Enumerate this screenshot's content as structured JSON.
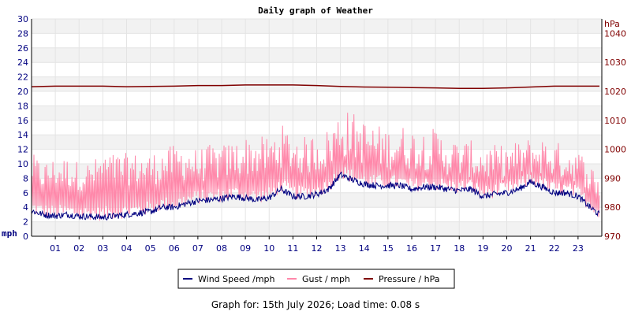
{
  "chart_data": {
    "type": "line",
    "title": "Daily graph of Weather",
    "left_axis": {
      "unit_label": "mph",
      "range": [
        0,
        30
      ],
      "ticks": [
        0,
        2,
        4,
        6,
        8,
        10,
        12,
        14,
        16,
        18,
        20,
        22,
        24,
        26,
        28,
        30
      ],
      "color": "#000080"
    },
    "right_axis": {
      "unit_label": "hPa",
      "range": [
        970,
        1045
      ],
      "ticks": [
        970,
        980,
        990,
        1000,
        1010,
        1020,
        1030,
        1040
      ],
      "color": "#800000"
    },
    "x_axis": {
      "range": [
        0,
        24
      ],
      "tick_labels": [
        "01",
        "02",
        "03",
        "04",
        "05",
        "06",
        "07",
        "08",
        "09",
        "10",
        "11",
        "12",
        "13",
        "14",
        "15",
        "16",
        "17",
        "18",
        "19",
        "20",
        "21",
        "22",
        "23"
      ]
    },
    "grid": true,
    "legend_position": "bottom-center",
    "series": [
      {
        "name": "Wind Speed /mph",
        "color": "#000080",
        "axis": "left",
        "x": [
          0,
          0.5,
          1,
          1.5,
          2,
          2.5,
          3,
          3.5,
          4,
          4.5,
          5,
          5.5,
          6,
          6.5,
          7,
          7.5,
          8,
          8.5,
          9,
          9.5,
          10,
          10.5,
          11,
          11.5,
          12,
          12.5,
          13,
          13.5,
          14,
          14.5,
          15,
          15.5,
          16,
          16.5,
          17,
          17.5,
          18,
          18.5,
          19,
          19.5,
          20,
          20.5,
          21,
          21.5,
          22,
          22.5,
          23,
          23.5,
          23.9
        ],
        "values": [
          3.5,
          3.0,
          2.8,
          3.0,
          2.8,
          2.7,
          2.6,
          2.8,
          3.0,
          3.2,
          3.4,
          4.0,
          4.0,
          4.5,
          4.9,
          5.0,
          5.2,
          5.5,
          5.3,
          5.0,
          5.3,
          6.5,
          5.5,
          5.5,
          5.8,
          6.5,
          8.5,
          7.8,
          7.2,
          7.0,
          7.0,
          7.0,
          6.5,
          6.8,
          6.8,
          6.5,
          6.3,
          6.5,
          5.5,
          5.8,
          6.0,
          6.5,
          7.5,
          6.8,
          6.0,
          6.0,
          5.5,
          4.0,
          3.0
        ]
      },
      {
        "name": "Gust / mph",
        "color": "#ff88aa",
        "axis": "left",
        "x": [
          0,
          0.5,
          1,
          1.5,
          2,
          2.5,
          3,
          3.5,
          4,
          4.5,
          5,
          5.5,
          6,
          6.5,
          7,
          7.5,
          8,
          8.5,
          9,
          9.5,
          10,
          10.5,
          11,
          11.5,
          12,
          12.5,
          13,
          13.5,
          14,
          14.5,
          15,
          15.5,
          16,
          16.5,
          17,
          17.5,
          18,
          18.5,
          19,
          19.5,
          20,
          20.5,
          21,
          21.5,
          22,
          22.5,
          23,
          23.5,
          23.9
        ],
        "values": [
          10,
          9,
          9.5,
          9.5,
          9,
          9,
          10,
          10,
          10,
          10,
          10,
          10.5,
          11,
          11,
          10.5,
          11,
          11,
          11.5,
          12,
          12,
          12,
          13.5,
          12.5,
          12,
          12.5,
          13,
          15.5,
          15,
          14,
          13.5,
          13,
          13.5,
          13,
          13,
          13,
          12,
          11.5,
          11.5,
          11,
          11,
          11,
          11.5,
          12,
          12,
          11.5,
          11,
          10.5,
          9,
          7
        ]
      },
      {
        "name": "Pressure / hPa",
        "color": "#800000",
        "axis": "right",
        "x": [
          0,
          1,
          2,
          3,
          4,
          5,
          6,
          7,
          8,
          9,
          10,
          11,
          12,
          13,
          14,
          15,
          16,
          17,
          18,
          19,
          20,
          21,
          22,
          23,
          23.9
        ],
        "values": [
          1021.6,
          1021.8,
          1021.8,
          1021.8,
          1021.6,
          1021.7,
          1021.8,
          1022.0,
          1022.0,
          1022.2,
          1022.2,
          1022.2,
          1022.0,
          1021.7,
          1021.5,
          1021.4,
          1021.3,
          1021.2,
          1021.0,
          1021.0,
          1021.2,
          1021.5,
          1021.8,
          1021.8,
          1021.8
        ]
      }
    ]
  },
  "footer": {
    "text": "Graph for: 15th July 2026; Load time: 0.08 s"
  }
}
